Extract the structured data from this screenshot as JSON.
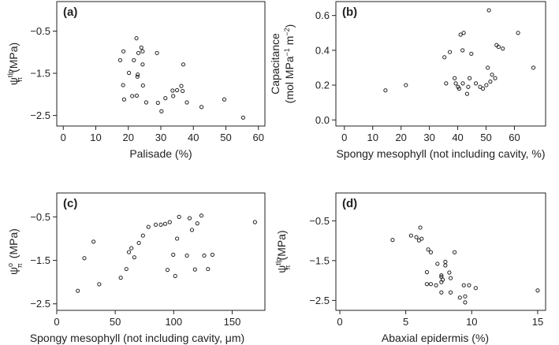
{
  "chart_data": [
    {
      "type": "scatter",
      "panel_label": "(a)",
      "xlabel": "Palisade (%)",
      "ylabel": "ψπtlp (MPa)",
      "ylabel_parts": {
        "main": "ψ",
        "sup": "tlp",
        "sub": "π",
        "unit": "(MPa)"
      },
      "xlim": [
        -2,
        62
      ],
      "ylim": [
        -2.75,
        0.2
      ],
      "xticks": [
        0,
        10,
        20,
        30,
        40,
        50,
        60
      ],
      "yticks": [
        -2.5,
        -1.5,
        -0.5
      ],
      "ytick_labels": [
        "−2.5",
        "−1.5",
        "−0.5"
      ],
      "x": [
        22.5,
        24.0,
        24.4,
        18.5,
        23.1,
        28.8,
        17.5,
        21.7,
        24.4,
        36.9,
        20.2,
        22.9,
        22.8,
        18.4,
        24.5,
        36.3,
        35.0,
        33.6,
        36.7,
        22.6,
        21.2,
        33.8,
        31.4,
        18.7,
        49.5,
        25.5,
        38.0,
        29.1,
        42.5,
        30.2,
        55.3
      ],
      "y": [
        -0.67,
        -0.89,
        -0.98,
        -0.98,
        -1.02,
        -1.02,
        -1.19,
        -1.19,
        -1.29,
        -1.29,
        -1.49,
        -1.53,
        -1.58,
        -1.78,
        -1.79,
        -1.8,
        -1.9,
        -1.91,
        -1.92,
        -2.03,
        -2.04,
        -2.04,
        -2.09,
        -2.12,
        -2.12,
        -2.19,
        -2.19,
        -2.2,
        -2.3,
        -2.4,
        -2.55
      ]
    },
    {
      "type": "scatter",
      "panel_label": "(b)",
      "xlabel": "Spongy mesophyll (not including cavity, %)",
      "ylabel": "Capacitance (mol MPa−1 m−2)",
      "ylabel_parts": {
        "line1": "Capacitance",
        "line2_pre": "(mol MPa",
        "sup1": "−1",
        "mid": " m",
        "sup2": "−2",
        "line2_post": ")"
      },
      "xlim": [
        -3,
        71
      ],
      "ylim": [
        -0.035,
        0.68
      ],
      "xticks": [
        0,
        10,
        20,
        30,
        40,
        50,
        60
      ],
      "yticks": [
        0.0,
        0.2,
        0.4,
        0.6
      ],
      "x": [
        14.5,
        21.7,
        35.3,
        35.9,
        37.2,
        38.9,
        39.3,
        40.1,
        40.5,
        41.0,
        41.8,
        42.1,
        43.3,
        43.7,
        44.2,
        44.8,
        46.4,
        47.9,
        48.9,
        50.1,
        50.6,
        51.0,
        51.5,
        52.1,
        53.2,
        53.7,
        54.4,
        55.9,
        61.3,
        66.7,
        41.7
      ],
      "y": [
        0.17,
        0.2,
        0.36,
        0.21,
        0.39,
        0.24,
        0.21,
        0.19,
        0.18,
        0.49,
        0.21,
        0.5,
        0.15,
        0.19,
        0.24,
        0.38,
        0.21,
        0.19,
        0.18,
        0.2,
        0.3,
        0.63,
        0.22,
        0.26,
        0.24,
        0.43,
        0.42,
        0.41,
        0.5,
        0.3,
        0.4
      ]
    },
    {
      "type": "scatter",
      "panel_label": "(c)",
      "xlabel": "Spongy mesophyll (not including cavity, μm)",
      "ylabel": "ψπo (MPa)",
      "ylabel_parts": {
        "main": "ψ",
        "sup": "o",
        "sub": "π",
        "unit": "(MPa)"
      },
      "xlim": [
        0,
        178
      ],
      "ylim": [
        -2.65,
        0.05
      ],
      "xticks": [
        0,
        50,
        100,
        150
      ],
      "yticks": [
        -2.5,
        -1.5,
        -0.5
      ],
      "ytick_labels": [
        "−2.5",
        "−1.5",
        "−0.5"
      ],
      "x": [
        18.0,
        23.6,
        31.4,
        36.3,
        54.7,
        59.5,
        61.7,
        63.8,
        66.3,
        70.2,
        73.7,
        78.4,
        84.6,
        89.0,
        92.7,
        94.7,
        96.6,
        99.6,
        101.3,
        102.9,
        104.6,
        111.3,
        113.6,
        115.6,
        118.2,
        120.2,
        123.7,
        126.1,
        129.3,
        133.1,
        169.5
      ],
      "y": [
        -2.2,
        -1.45,
        -1.07,
        -2.05,
        -1.9,
        -1.7,
        -1.31,
        -1.22,
        -1.43,
        -1.1,
        -0.93,
        -0.73,
        -0.68,
        -0.68,
        -0.66,
        -1.72,
        -0.62,
        -1.37,
        -1.86,
        -1.0,
        -0.5,
        -1.39,
        -0.53,
        -0.8,
        -1.71,
        -0.65,
        -0.47,
        -1.39,
        -1.7,
        -1.37,
        -0.62
      ]
    },
    {
      "type": "scatter",
      "panel_label": "(d)",
      "xlabel": "Abaxial epidermis (%)",
      "ylabel": "ψπtlp (MPa)",
      "ylabel_parts": {
        "main": "ψ",
        "sup": "tlp",
        "sub": "π",
        "unit": "(MPa)"
      },
      "xlim": [
        -0.3,
        15.6
      ],
      "ylim": [
        -2.75,
        0.2
      ],
      "xticks": [
        0,
        5,
        10,
        15
      ],
      "yticks": [
        -2.5,
        -1.5,
        -0.5
      ],
      "ytick_labels": [
        "−2.5",
        "−1.5",
        "−0.5"
      ],
      "x": [
        4.0,
        5.4,
        5.8,
        6.0,
        6.1,
        6.2,
        6.7,
        6.9,
        6.6,
        8.7,
        7.7,
        7.7,
        8.0,
        7.4,
        6.6,
        8.0,
        8.4,
        9.4,
        8.3,
        7.7,
        6.9,
        9.8,
        7.7,
        7.8,
        10.3,
        7.3,
        8.4,
        9.5,
        9.1,
        9.5,
        15.0
      ],
      "y": [
        -0.98,
        -0.87,
        -0.91,
        -0.99,
        -0.67,
        -0.95,
        -1.22,
        -1.29,
        -1.79,
        -1.29,
        -1.87,
        -1.91,
        -1.53,
        -1.58,
        -2.09,
        -1.62,
        -1.94,
        -2.12,
        -1.8,
        -2.04,
        -2.09,
        -2.12,
        -2.3,
        -1.98,
        -2.19,
        -2.12,
        -2.3,
        -2.4,
        -2.43,
        -2.55,
        -2.25
      ]
    }
  ]
}
